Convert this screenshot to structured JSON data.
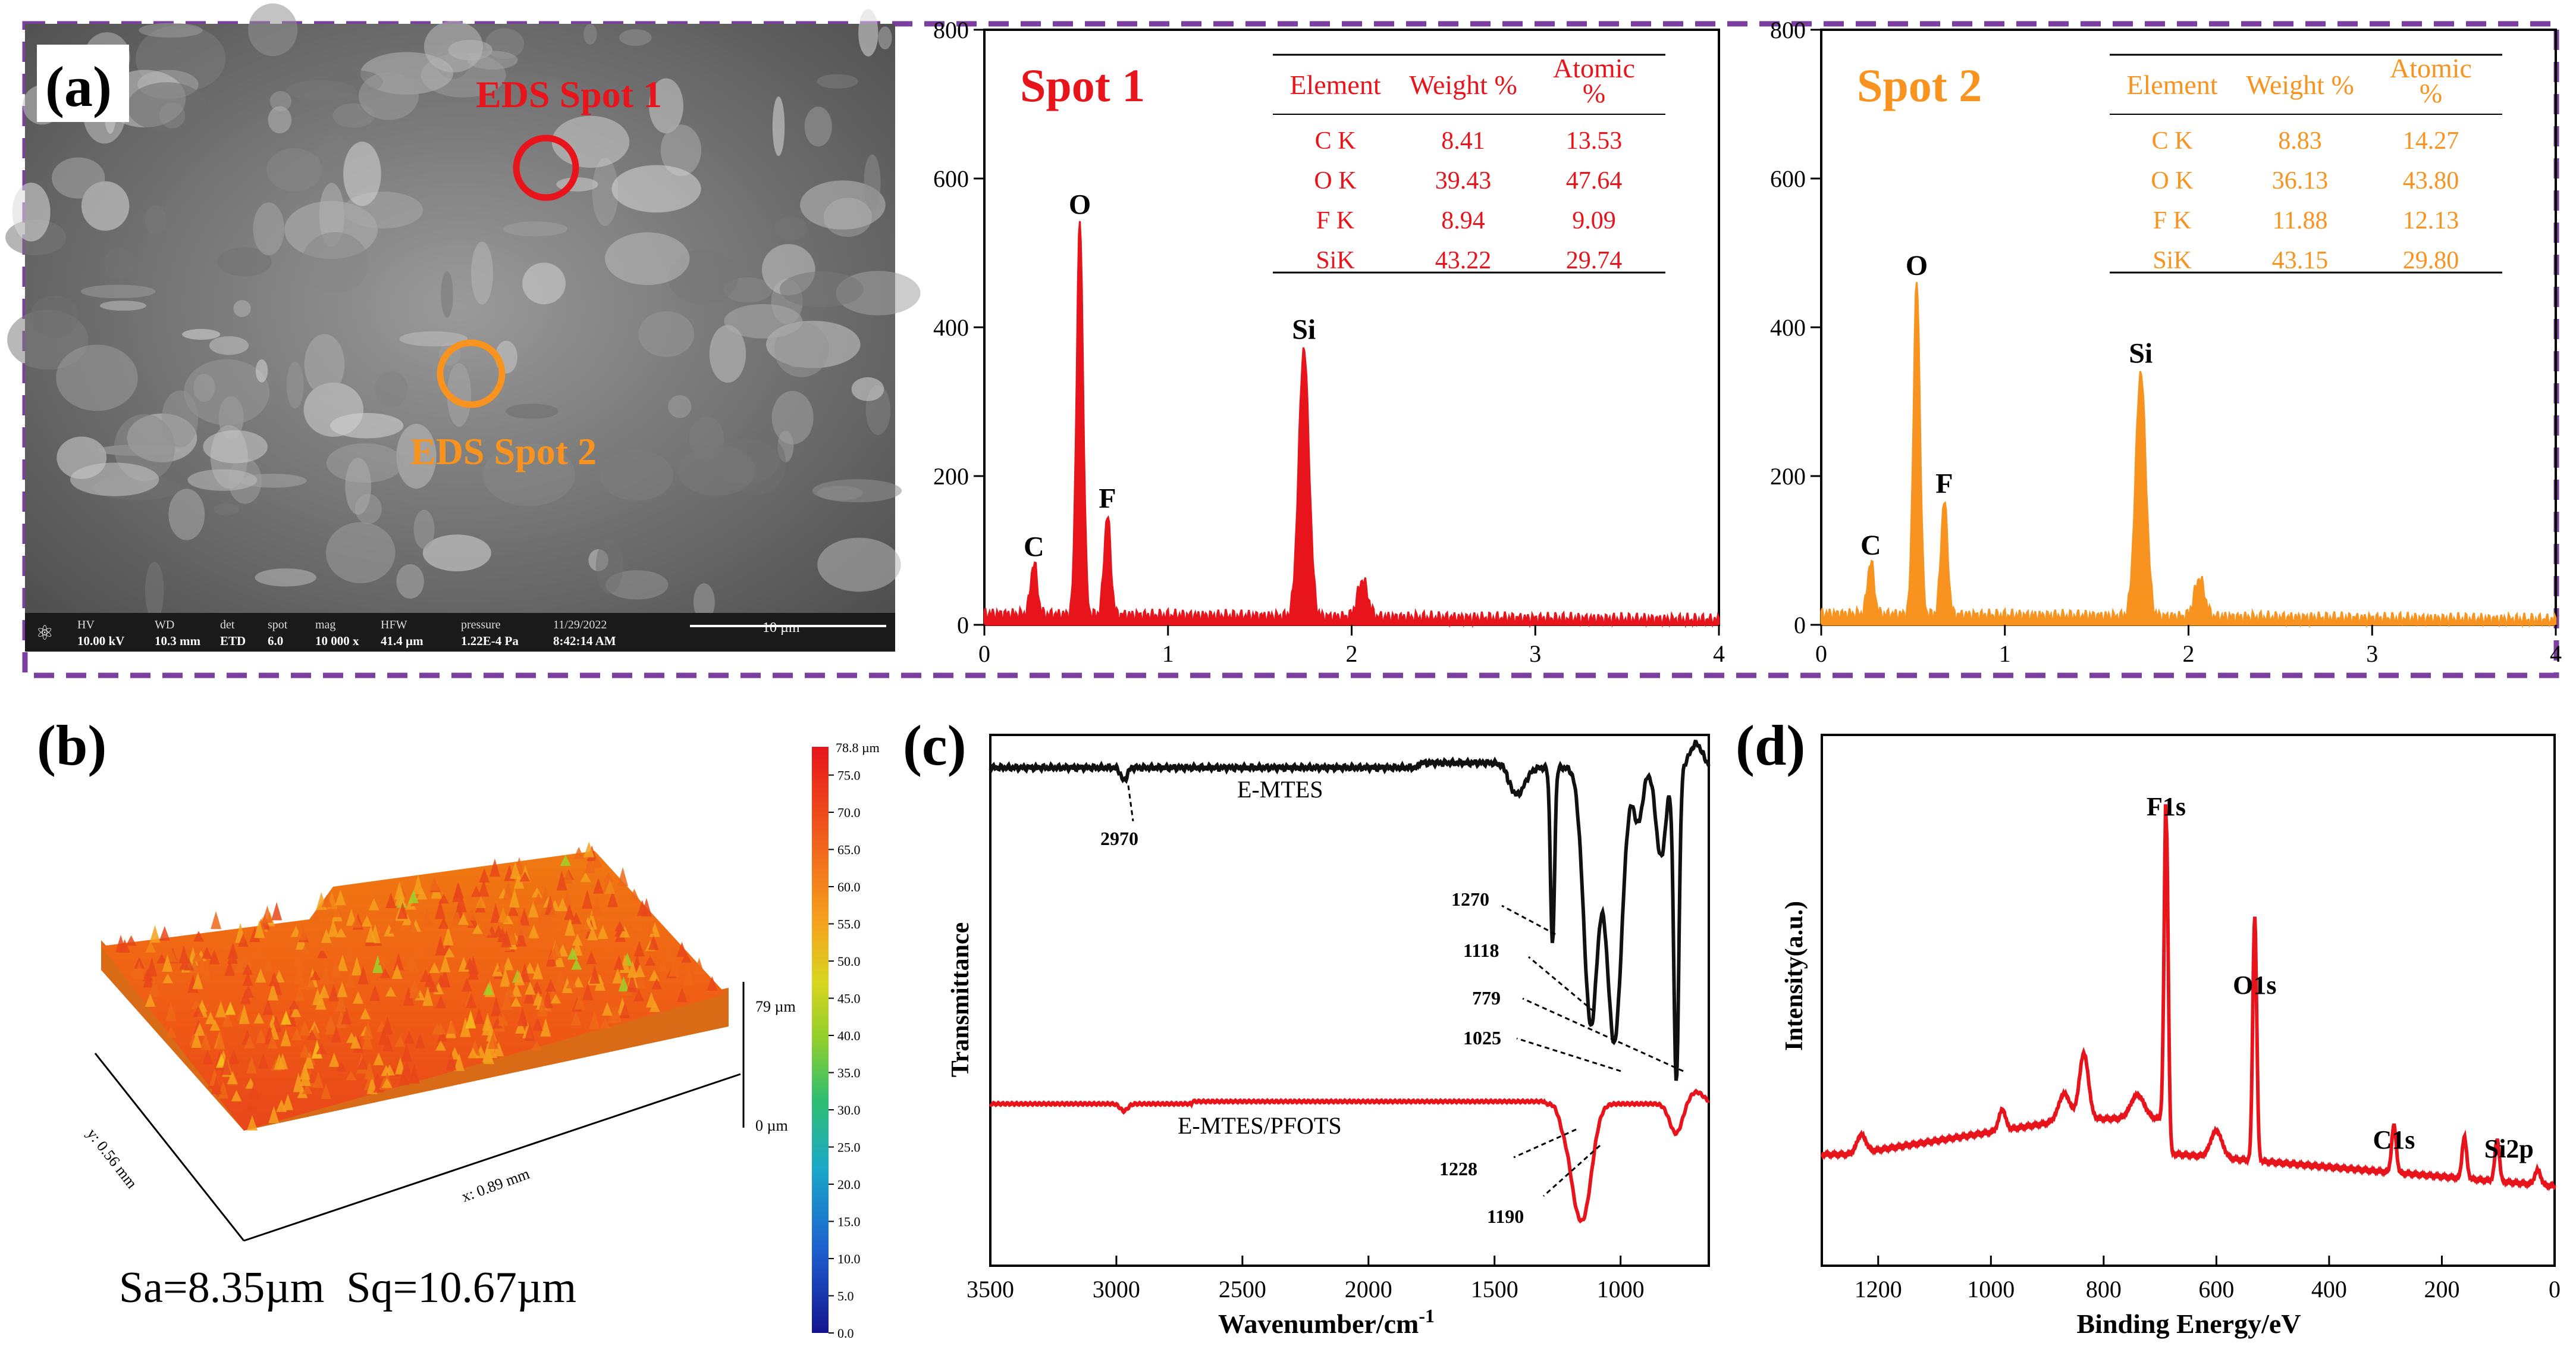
{
  "panel_labels": {
    "a": "(a)",
    "b": "(b)",
    "c": "(c)",
    "d": "(d)"
  },
  "colors": {
    "spot1": "#e8141b",
    "spot2": "#f7931e",
    "frame": "#7b3fa0",
    "ftir_top": "#111111",
    "ftir_bottom": "#e8141b",
    "xps": "#e8141b"
  },
  "sem": {
    "spot1_label": "EDS Spot 1",
    "spot2_label": "EDS Spot 2",
    "info_bar": {
      "labels": [
        "HV",
        "WD",
        "det",
        "spot",
        "mag",
        "HFW",
        "pressure",
        "11/29/2022"
      ],
      "values": [
        "10.00 kV",
        "10.3 mm",
        "ETD",
        "6.0",
        "10 000 x",
        "41.4 µm",
        "1.22E-4 Pa",
        "8:42:14 AM"
      ],
      "scale": "10 µm"
    }
  },
  "chart_data": [
    {
      "type": "line",
      "title": "Spot 1",
      "xlim": [
        0,
        4
      ],
      "ylim": [
        0,
        800
      ],
      "xticks": [
        0,
        1,
        2,
        3,
        4
      ],
      "yticks": [
        0,
        200,
        400,
        600,
        800
      ],
      "peaks": [
        {
          "label": "C",
          "x": 0.27,
          "y": 70
        },
        {
          "label": "O",
          "x": 0.52,
          "y": 530
        },
        {
          "label": "F",
          "x": 0.67,
          "y": 135
        },
        {
          "label": "Si",
          "x": 1.74,
          "y": 362
        },
        {
          "label": "",
          "x": 2.06,
          "y": 50
        }
      ],
      "table": {
        "headers": [
          "Element",
          "Weight %",
          "Atomic %"
        ],
        "rows": [
          [
            "C K",
            "8.41",
            "13.53"
          ],
          [
            "O K",
            "39.43",
            "47.64"
          ],
          [
            "F K",
            "8.94",
            "9.09"
          ],
          [
            "SiK",
            "43.22",
            "29.74"
          ]
        ]
      }
    },
    {
      "type": "line",
      "title": "Spot 2",
      "xlim": [
        0,
        4
      ],
      "ylim": [
        0,
        800
      ],
      "xticks": [
        0,
        1,
        2,
        3,
        4
      ],
      "yticks": [
        0,
        200,
        400,
        600,
        800
      ],
      "peaks": [
        {
          "label": "C",
          "x": 0.27,
          "y": 72
        },
        {
          "label": "O",
          "x": 0.52,
          "y": 448
        },
        {
          "label": "F",
          "x": 0.67,
          "y": 155
        },
        {
          "label": "Si",
          "x": 1.74,
          "y": 330
        },
        {
          "label": "",
          "x": 2.06,
          "y": 52
        }
      ],
      "table": {
        "headers": [
          "Element",
          "Weight %",
          "Atomic %"
        ],
        "rows": [
          [
            "C K",
            "8.83",
            "14.27"
          ],
          [
            "O K",
            "36.13",
            "43.80"
          ],
          [
            "F K",
            "11.88",
            "12.13"
          ],
          [
            "SiK",
            "43.15",
            "29.80"
          ]
        ]
      }
    },
    {
      "type": "heatmap",
      "colorbar_unit_top": "78.8 µm",
      "colorbar_ticks": [
        "75.0",
        "70.0",
        "65.0",
        "60.0",
        "55.0",
        "50.0",
        "45.0",
        "40.0",
        "35.0",
        "30.0",
        "25.0",
        "20.0",
        "15.0",
        "10.0",
        "5.0",
        "0.0"
      ],
      "z_top": "79 µm",
      "z_bottom": "0 µm",
      "x_axis": "x: 0.89 mm",
      "y_axis": "y: 0.56 mm",
      "roughness": "Sa=8.35µm  Sq=10.67µm"
    },
    {
      "type": "line",
      "xlabel": "Wavenumber/cm",
      "xlabel_sup": "-1",
      "ylabel": "Transmittance",
      "xlim": [
        3500,
        650
      ],
      "xticks": [
        3500,
        3000,
        2500,
        2000,
        1500,
        1000
      ],
      "series": [
        {
          "name": "E-MTES",
          "annotations": [
            "2970",
            "1270",
            "1118",
            "779",
            "1025"
          ]
        },
        {
          "name": "E-MTES/PFOTS",
          "annotations": [
            "1228",
            "1190"
          ]
        }
      ]
    },
    {
      "type": "line",
      "xlabel": "Binding Energy/eV",
      "ylabel": "Intensity(a.u.)",
      "xlim": [
        1300,
        0
      ],
      "xticks": [
        1200,
        1000,
        800,
        600,
        400,
        200,
        0
      ],
      "peaks": [
        {
          "label": "F1s",
          "x": 689
        },
        {
          "label": "O1s",
          "x": 532
        },
        {
          "label": "C1s",
          "x": 285
        },
        {
          "label": "Si2p",
          "x": 102
        }
      ]
    }
  ]
}
